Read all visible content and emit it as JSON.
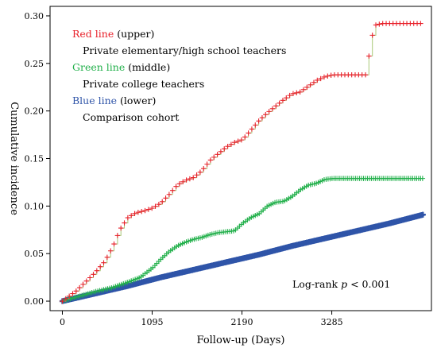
{
  "chart_data": {
    "type": "line",
    "xlabel": "Follow-up (Days)",
    "ylabel": "Cumulative incidence",
    "x_ticks": [
      0,
      1095,
      2190,
      3285
    ],
    "y_ticks": [
      "0.00",
      "0.05",
      "0.10",
      "0.15",
      "0.20",
      "0.25",
      "0.30"
    ],
    "xlim": [
      -150,
      4500
    ],
    "ylim": [
      -0.01,
      0.31
    ],
    "grid": false,
    "legend": {
      "placement": "top-left",
      "entries": [
        {
          "color_word": "Red line",
          "qualifier": " (upper)",
          "description": "Private elementary/high school teachers",
          "color": "#e8202a"
        },
        {
          "color_word": "Green line",
          "qualifier": " (middle)",
          "description": "Private college teachers",
          "color": "#22b04b"
        },
        {
          "color_word": "Blue line",
          "qualifier": " (lower)",
          "description": "Comparison cohort",
          "color": "#2f54a8"
        }
      ]
    },
    "annotation": {
      "prefix": "Log-rank ",
      "p": "p",
      "suffix": " < 0.001"
    },
    "series": [
      {
        "color": "#e8202a",
        "step_color": "#a8c878",
        "x": [
          0,
          80,
          160,
          280,
          400,
          520,
          620,
          700,
          800,
          900,
          1000,
          1100,
          1200,
          1300,
          1400,
          1500,
          1600,
          1700,
          1800,
          1900,
          2000,
          2100,
          2200,
          2300,
          2400,
          2500,
          2600,
          2700,
          2800,
          2900,
          3000,
          3100,
          3200,
          3300,
          3400,
          3500,
          3600,
          3700,
          3800,
          3900,
          4100,
          4400
        ],
        "y": [
          0.0,
          0.005,
          0.01,
          0.02,
          0.03,
          0.042,
          0.058,
          0.075,
          0.088,
          0.093,
          0.095,
          0.098,
          0.103,
          0.112,
          0.122,
          0.127,
          0.13,
          0.137,
          0.148,
          0.155,
          0.162,
          0.167,
          0.17,
          0.18,
          0.19,
          0.198,
          0.205,
          0.212,
          0.218,
          0.22,
          0.226,
          0.232,
          0.236,
          0.238,
          0.238,
          0.238,
          0.238,
          0.238,
          0.29,
          0.292,
          0.292,
          0.292
        ]
      },
      {
        "color": "#22b04b",
        "step_color": "#22b04b",
        "x": [
          0,
          200,
          400,
          600,
          800,
          950,
          1100,
          1200,
          1300,
          1400,
          1500,
          1600,
          1700,
          1800,
          1900,
          2000,
          2100,
          2200,
          2300,
          2400,
          2500,
          2600,
          2700,
          2800,
          2900,
          3000,
          3100,
          3200,
          3300,
          3400,
          3500,
          3700,
          3900,
          4100,
          4400
        ],
        "y": [
          0.0,
          0.005,
          0.01,
          0.014,
          0.02,
          0.025,
          0.035,
          0.044,
          0.052,
          0.058,
          0.062,
          0.065,
          0.067,
          0.07,
          0.072,
          0.073,
          0.074,
          0.082,
          0.088,
          0.092,
          0.1,
          0.104,
          0.105,
          0.11,
          0.117,
          0.122,
          0.124,
          0.128,
          0.129,
          0.129,
          0.129,
          0.129,
          0.129,
          0.129,
          0.129
        ]
      },
      {
        "color": "#2f54a8",
        "step_color": "#2f54a8",
        "x": [
          0,
          400,
          800,
          1200,
          1600,
          2000,
          2400,
          2800,
          3200,
          3600,
          4000,
          4400
        ],
        "y": [
          0.0,
          0.008,
          0.016,
          0.025,
          0.033,
          0.041,
          0.049,
          0.058,
          0.066,
          0.074,
          0.082,
          0.091
        ]
      }
    ]
  }
}
